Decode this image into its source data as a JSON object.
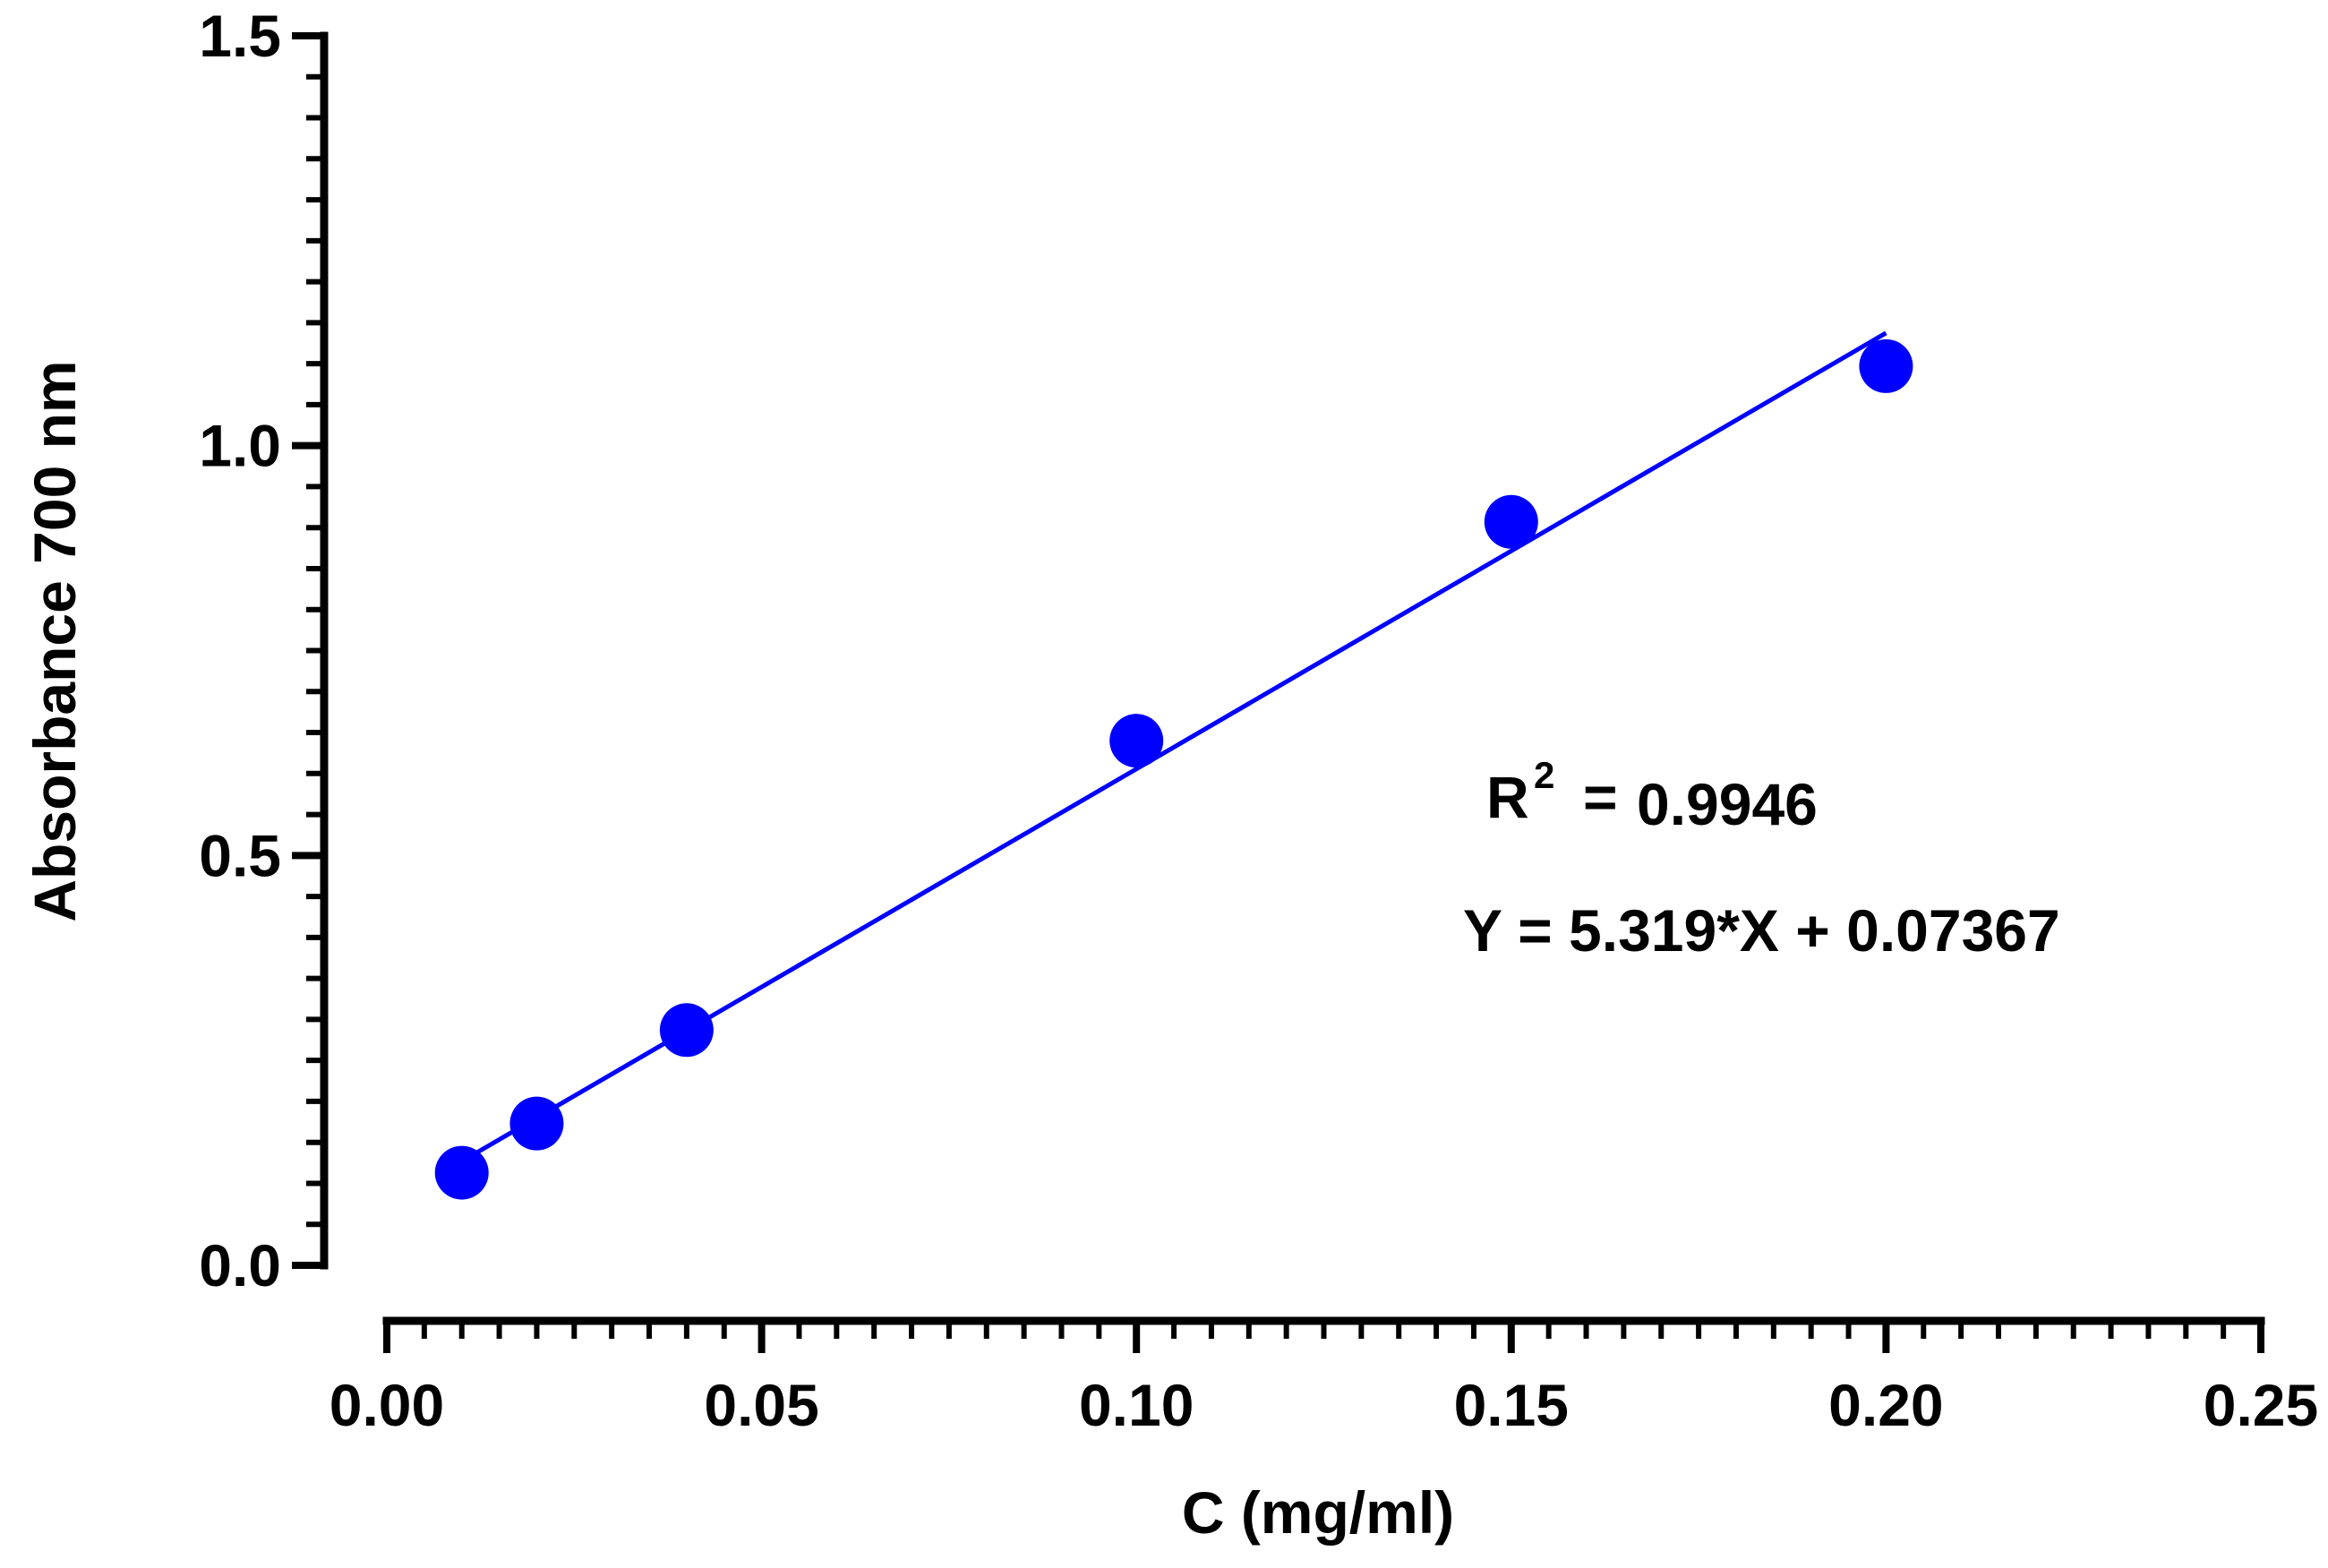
{
  "chart_data": {
    "type": "scatter",
    "title": "",
    "xlabel": "C (mg/ml)",
    "ylabel": "Absorbance 700 nm",
    "xlim": [
      0,
      0.25
    ],
    "ylim": [
      0,
      1.5
    ],
    "x_ticks": [
      "0.00",
      "0.05",
      "0.10",
      "0.15",
      "0.20",
      "0.25"
    ],
    "y_ticks": [
      "0.0",
      "0.5",
      "1.0",
      "1.5"
    ],
    "x_tick_values": [
      0,
      0.05,
      0.1,
      0.15,
      0.2,
      0.25
    ],
    "y_tick_values": [
      0,
      0.5,
      1.0,
      1.5
    ],
    "x_minor_step": 0.005,
    "y_minor_step": 0.05,
    "grid": false,
    "series": [
      {
        "name": "Absorbance",
        "x": [
          0.01,
          0.02,
          0.04,
          0.1,
          0.15,
          0.2
        ],
        "y": [
          0.113,
          0.173,
          0.287,
          0.64,
          0.907,
          1.097
        ],
        "color": "#0000FF"
      }
    ],
    "fit_line": {
      "slope": 5.319,
      "intercept": 0.07367,
      "x_range": [
        0.01,
        0.2
      ],
      "color": "#0000FF"
    },
    "annotations": {
      "r2_label": "R",
      "r2_superscript": "2",
      "r2_equals": "=",
      "r2_value": "0.9946",
      "equation": "Y = 5.319*X + 0.07367"
    }
  }
}
